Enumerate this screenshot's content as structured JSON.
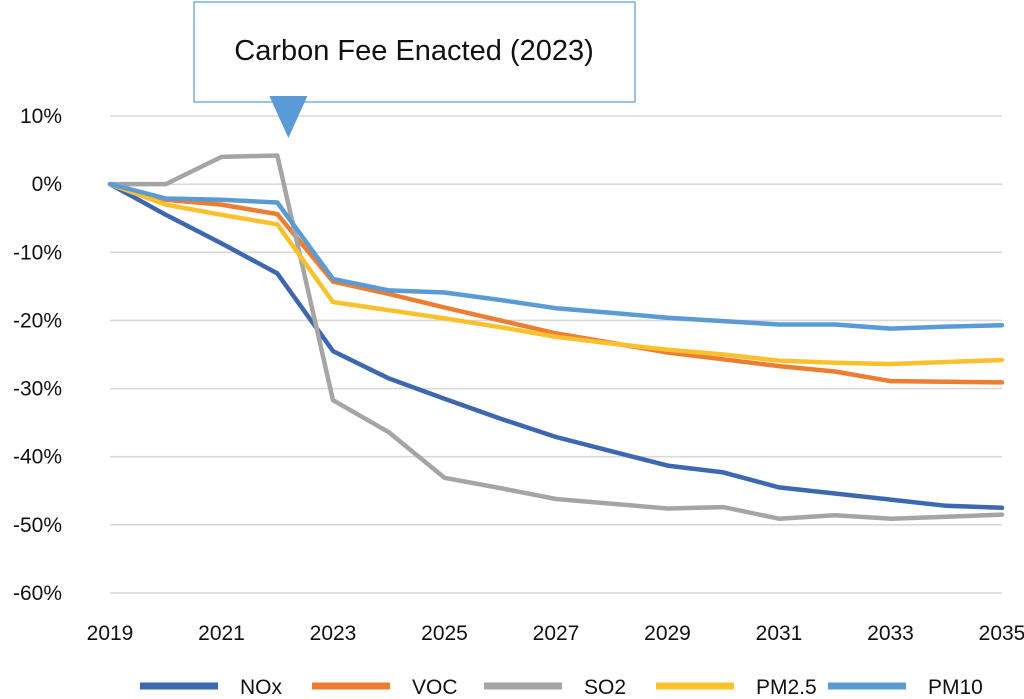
{
  "chart_data": {
    "type": "line",
    "title": "",
    "xlabel": "",
    "ylabel": "",
    "x": [
      2019,
      2020,
      2021,
      2022,
      2023,
      2024,
      2025,
      2026,
      2027,
      2028,
      2029,
      2030,
      2031,
      2032,
      2033,
      2034,
      2035
    ],
    "x_tick_labels": [
      "2019",
      "2021",
      "2023",
      "2025",
      "2027",
      "2029",
      "2031",
      "2033",
      "2035"
    ],
    "x_ticks": [
      2019,
      2021,
      2023,
      2025,
      2027,
      2029,
      2031,
      2033,
      2035
    ],
    "xlim": [
      2019,
      2035
    ],
    "ylim": [
      -60,
      10
    ],
    "y_ticks": [
      10,
      0,
      -10,
      -20,
      -30,
      -40,
      -50,
      -60
    ],
    "y_tick_labels": [
      "10%",
      "0%",
      "-10%",
      "-20%",
      "-30%",
      "-40%",
      "-50%",
      "-60%"
    ],
    "grid": true,
    "legend_position": "bottom",
    "series": [
      {
        "name": "NOx",
        "color": "#3e67b1",
        "values": [
          0,
          -4.5,
          -8.7,
          -13.1,
          -24.5,
          -28.5,
          -31.5,
          -34.4,
          -37.1,
          -39.2,
          -41.3,
          -42.3,
          -44.5,
          -45.4,
          -46.3,
          -47.2,
          -47.5
        ]
      },
      {
        "name": "VOC",
        "color": "#ed7d31",
        "values": [
          0,
          -2.3,
          -3.0,
          -4.4,
          -14.3,
          -16.1,
          -18.1,
          -20.0,
          -21.9,
          -23.3,
          -24.7,
          -25.7,
          -26.7,
          -27.5,
          -28.9,
          -29.0,
          -29.1
        ]
      },
      {
        "name": "SO2",
        "color": "#a5a5a5",
        "values": [
          0,
          0,
          4.0,
          4.2,
          -31.7,
          -36.4,
          -43.1,
          -44.6,
          -46.2,
          -46.9,
          -47.6,
          -47.4,
          -49.1,
          -48.6,
          -49.1,
          -48.8,
          -48.5
        ]
      },
      {
        "name": "PM2.5",
        "color": "#fbc12d",
        "values": [
          0,
          -3.0,
          -4.5,
          -5.9,
          -17.3,
          -18.5,
          -19.7,
          -21.0,
          -22.4,
          -23.4,
          -24.3,
          -25.0,
          -25.9,
          -26.2,
          -26.4,
          -26.1,
          -25.8
        ]
      },
      {
        "name": "PM10",
        "color": "#5b9bd5",
        "values": [
          0,
          -2.1,
          -2.3,
          -2.7,
          -13.9,
          -15.6,
          -15.9,
          -17.0,
          -18.2,
          -18.9,
          -19.6,
          -20.1,
          -20.6,
          -20.6,
          -21.2,
          -20.9,
          -20.7
        ]
      }
    ],
    "annotations": [
      {
        "text": "Carbon Fee Enacted (2023)",
        "points_to_x": 2022.2
      }
    ]
  }
}
